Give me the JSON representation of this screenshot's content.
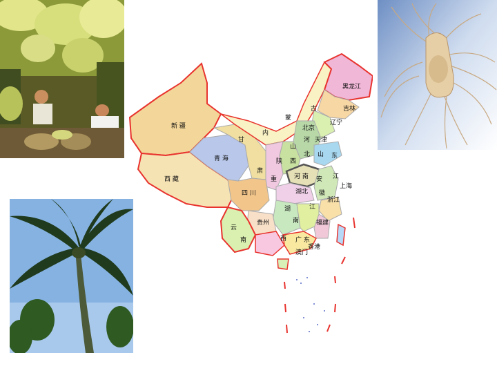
{
  "photos": {
    "grapes": "grape-harvest-photo",
    "ginseng": "ginseng-root-photo",
    "palm": "coconut-palm-photo"
  },
  "map": {
    "provinces": {
      "xinjiang": "新  疆",
      "xizang": "西        藏",
      "qinghai": "青  海",
      "gansu_1": "甘",
      "gansu_2": "肃",
      "neimenggu_1": "内",
      "neimenggu_2": "蒙",
      "neimenggu_3": "古",
      "heilongjiang": "黑龙江",
      "jilin": "吉林",
      "liaoning": "辽宁",
      "beijing": "北京",
      "tianjin": "天津",
      "hebei_1": "河",
      "hebei_2": "北",
      "shanxi_1": "山",
      "shanxi_2": "西",
      "shandong_1": "山",
      "shandong_2": "东",
      "shaanxi": "陕",
      "henan": "河 南",
      "sichuan": "四  川",
      "hubei": "湖北",
      "anhui_1": "安",
      "anhui_2": "徽",
      "jiangsu": "江",
      "shanghai": "上海",
      "zhejiang": "浙江",
      "jiangxi": "江",
      "hunan_1": "湖",
      "hunan_2": "南",
      "guizhou": "贵州",
      "yunnan_1": "云",
      "yunnan_2": "南",
      "guangxi": "西",
      "guangdong": "广  东",
      "fujian": "福建",
      "chongqing": "重",
      "hongkong": "香港",
      "macao": "澳门"
    }
  },
  "colors": {
    "border": "#e8332e",
    "xinjiang": "#f3d79a",
    "xizang": "#f6e3b4",
    "qinghai": "#b8c7ea",
    "gansu": "#f0dfa0",
    "neimenggu": "#f9f2c4",
    "heilongjiang": "#f0b7d6",
    "jilin": "#f7d7a4",
    "sichuan": "#f2c58a",
    "yunnan": "#d9f0b0",
    "henan": "#e6e0b6"
  }
}
